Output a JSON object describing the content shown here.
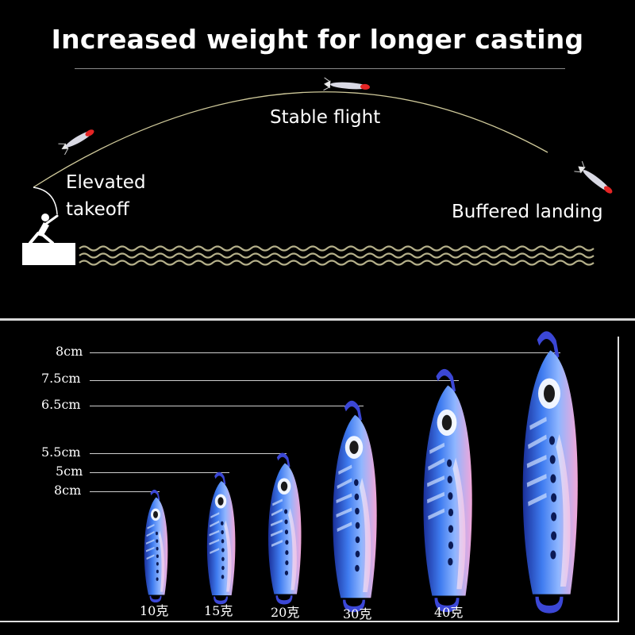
{
  "headline": "Increased weight for longer casting",
  "flight": {
    "stable_label": "Stable flight",
    "takeoff_label": "Elevated takeoff",
    "landing_label": "Buffered landing"
  },
  "sizes": [
    "8cm",
    "7.5cm",
    "6.5cm",
    "5.5cm",
    "5cm",
    "8cm"
  ],
  "weights": [
    "10克",
    "15克",
    "20克",
    "30克",
    "40克"
  ],
  "colors": {
    "background": "#000000",
    "text": "#ffffff",
    "lure_blue": "#2f5fe0",
    "lure_pink": "#f2a6d8",
    "wave": "#b5b08a"
  }
}
